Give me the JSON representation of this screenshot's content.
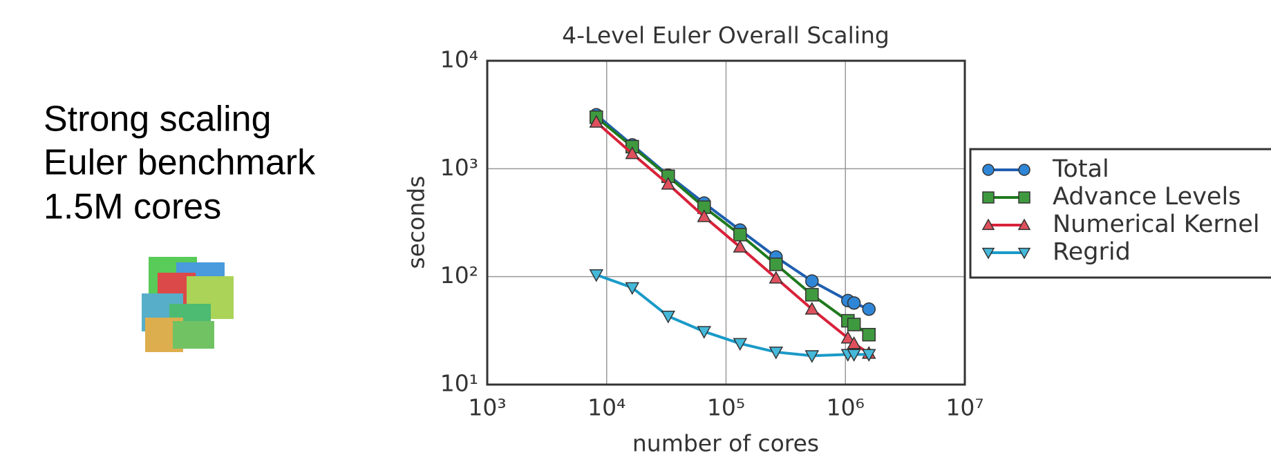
{
  "slide": {
    "lines": [
      "Strong scaling",
      "Euler benchmark",
      "1.5M cores"
    ]
  },
  "chart_data": {
    "type": "line",
    "title": "4-Level Euler Overall Scaling",
    "x_label": "number of cores",
    "y_label": "seconds",
    "x": [
      8192,
      16384,
      32768,
      65536,
      131072,
      262144,
      524288,
      1048576,
      1179648,
      1572864
    ],
    "series": [
      {
        "name": "Total",
        "color": "#1f5fb0",
        "marker": "circle",
        "marker_color": "#2f86d6",
        "values": [
          3160,
          1660,
          870,
          480,
          270,
          152,
          91,
          60,
          57,
          50
        ]
      },
      {
        "name": "Advance Levels",
        "color": "#1f7a1f",
        "marker": "square",
        "marker_color": "#3f9a3f",
        "values": [
          3000,
          1600,
          850,
          440,
          245,
          130,
          68,
          39,
          36,
          29
        ]
      },
      {
        "name": "Numerical Kernel",
        "color": "#d8223a",
        "marker": "triangle-up",
        "marker_color": "#e0505c",
        "values": [
          2700,
          1380,
          720,
          360,
          188,
          97,
          50,
          27,
          24,
          19.5
        ]
      },
      {
        "name": "Regrid",
        "color": "#1a9ac8",
        "marker": "triangle-down",
        "marker_color": "#45b9da",
        "values": [
          104,
          79,
          43,
          31,
          24,
          20,
          18.5,
          19,
          19,
          19
        ]
      }
    ],
    "xlim": [
      1000,
      10000000
    ],
    "ylim": [
      10,
      10000
    ],
    "xticks": [
      {
        "value": 1000,
        "label": "10³"
      },
      {
        "value": 10000,
        "label": "10⁴"
      },
      {
        "value": 100000,
        "label": "10⁵"
      },
      {
        "value": 1000000,
        "label": "10⁶"
      },
      {
        "value": 10000000,
        "label": "10⁷"
      }
    ],
    "yticks": [
      {
        "value": 10,
        "label": "10¹"
      },
      {
        "value": 100,
        "label": "10²"
      },
      {
        "value": 1000,
        "label": "10³"
      },
      {
        "value": 10000,
        "label": "10⁴"
      }
    ],
    "x_scale": "log",
    "y_scale": "log",
    "grid": true,
    "legend": "right"
  }
}
